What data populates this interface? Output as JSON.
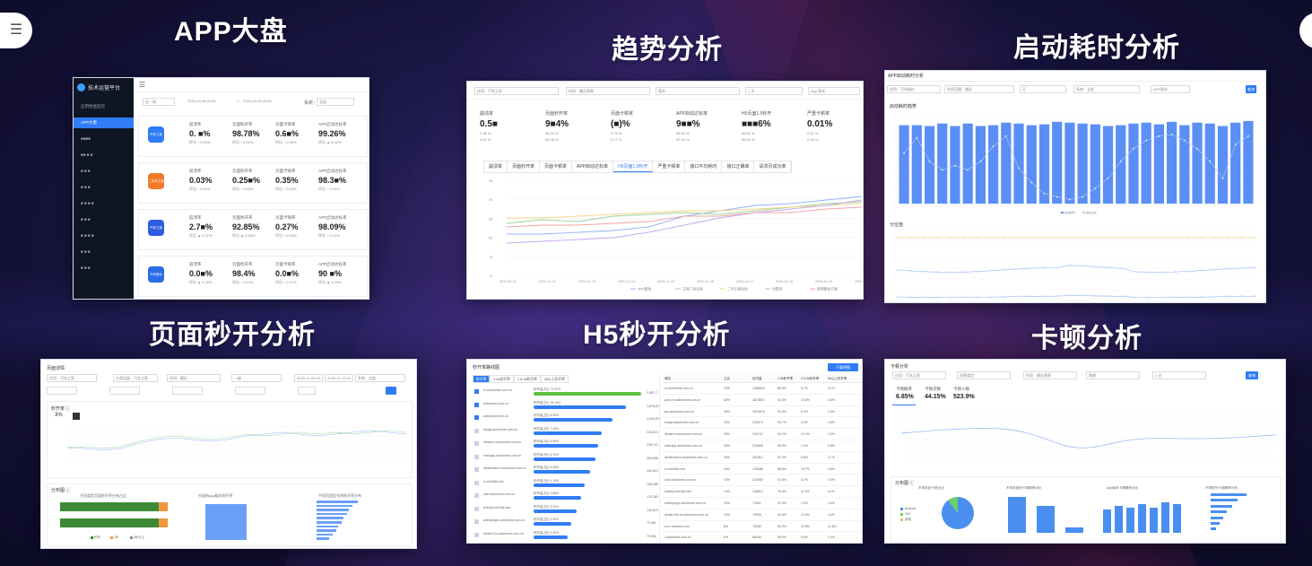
{
  "titles": {
    "app_dashboard": "APP大盘",
    "trend": "趋势分析",
    "startup": "启动耗时分析",
    "page_open": "页面秒开分析",
    "h5_open": "H5秒开分析",
    "jank": "卡顿分析"
  },
  "p1": {
    "brand": "技术运营平台",
    "nav": [
      "应用性能监控",
      "APP大盘",
      "■■■■",
      "■■ ■ ■",
      "■ ■ ■",
      "■ ■ ■",
      "■ ■ ■ ■",
      "■ ■ ■",
      "■ ■ ■ ■",
      "■ ■ ■",
      "■ ■ ■"
    ],
    "filter": {
      "range": "近一周",
      "start": "2020-10-08 00:00",
      "sep": "~",
      "end": "2020-10-15 00:00",
      "system_label": "系统：",
      "system": "全部"
    },
    "kpi_labels": [
      "崩溃率",
      "页面秒开率",
      "页面卡顿率",
      "APP启动达标率"
    ],
    "apps": [
      {
        "icon": "汽车之家",
        "color": "#2f7cf6",
        "values": [
          "0. ■%",
          "98.78%",
          "0.6■%",
          "99.26%"
        ],
        "cmp": [
          "环比 ↑ 0.00%",
          "环比 ↑ 0.03%",
          "环比 ↑ 0.00%",
          "环比 ▲ 0.03%"
        ],
        "dir": [
          "up",
          "up",
          "up",
          "down"
        ]
      },
      {
        "icon": "二手车之家",
        "color": "#f07a2a",
        "values": [
          "0.03%",
          "0.25■%",
          "0.35%",
          "98.3■%"
        ],
        "cmp": [
          "环比 ↑ 0.42%",
          "环比 ↑ 0.03%",
          "环比 ↑ 0.00%",
          "环比 ↑ 0.03%"
        ],
        "dir": [
          "up",
          "up",
          "up",
          "up"
        ]
      },
      {
        "icon": "汽车之家",
        "color": "#2f5de0",
        "values": [
          "2.7■%",
          "92.85%",
          "0.27%",
          "98.09%"
        ],
        "cmp": [
          "环比 ▲ 0.37%",
          "环比 ▲ 0.28%",
          "环比 ↑ 0.03%",
          "环比 ↑ 0.10%"
        ],
        "dir": [
          "down",
          "down",
          "up",
          "up"
        ]
      },
      {
        "icon": "汽车报价",
        "color": "#2a6be8",
        "values": [
          "0.0■%",
          "98.4%",
          "0.0■%",
          "90 ■%"
        ],
        "cmp": [
          "环比 ▲ 0.30%",
          "环比 ↑ 0.07%",
          "环比 ↑ 0.07%",
          "环比 ▲ 0.03%"
        ],
        "dir": [
          "down",
          "up",
          "up",
          "down"
        ]
      }
    ]
  },
  "p2": {
    "filters": [
      "应用：汽车之家",
      "时间：最近两周",
      "版本",
      "1 天",
      "App 版本"
    ],
    "kpis": [
      {
        "t": "崩溃率",
        "v": "0.5■",
        "s1": "2.98 %",
        "s2": "3.87 %"
      },
      {
        "t": "页面秒开率",
        "v": "9■4%",
        "s1": "98.34 %",
        "s2": "96.48 %"
      },
      {
        "t": "页面卡顿率",
        "v": "(■)%",
        "s1": "0.73 %",
        "s2": "0.17 %"
      },
      {
        "t": "APP启动达标率",
        "v": "9■■%",
        "s1": "98.83 %",
        "s2": "97.03 %"
      },
      {
        "t": "H5页面1.5秒开",
        "v": "■■■6%",
        "s1": "96.82 %",
        "s2": "86.22 %"
      },
      {
        "t": "严重卡顿率",
        "v": "0.01%",
        "s1": "0.02 %",
        "s2": "0.03 %"
      }
    ],
    "tabs": [
      "崩溃率",
      "页面秒开率",
      "页面卡顿率",
      "APP启动达标率",
      "H5页面1.5秒开",
      "严重卡顿率",
      "接口平均耗时",
      "接口正确率",
      "请求页成功率"
    ],
    "y_ticks": [
      "95",
      "90",
      "85",
      "80",
      "75",
      "70"
    ],
    "x_ticks": [
      "2020-11-11",
      "2020-11-12",
      "2020-11-13",
      "2020-11-14",
      "2020-11-15",
      "2020-11-16",
      "2020-11-17",
      "2020-11-18",
      "2020-11-19",
      "2020-11-20"
    ],
    "legend": [
      "APP整体",
      "主程厂商名称",
      "二手车相关性",
      "问题库",
      "新增整体方案"
    ]
  },
  "p3": {
    "head": "APP启动耗时分析",
    "filters": [
      "应用：汽车报价",
      "时间范围：最近",
      "天",
      "系统：全部",
      "APP版本"
    ],
    "section1": "启动耗时趋势",
    "section2": "分位值",
    "button": "查询",
    "legend": [
      "启动耗时",
      "启动占比"
    ]
  },
  "p4": {
    "head": "页面详情",
    "filters": [
      "应用：汽车之家",
      "分类层级：汽车之家",
      "时间：最近",
      "一级",
      "2020-11-06 00",
      "2020-11-12 00",
      "系统：全部"
    ],
    "sub1": "秒开率 ⓘ",
    "sub1_value": "3%",
    "sub2": "分布图 ⓘ",
    "chart_titles": [
      "不同类型页面秒开率分布占比",
      "分段的app版本秒开率",
      "不同页面型号的秒开率分布"
    ],
    "legend": [
      "秒开",
      "1秒",
      "2秒以上"
    ]
  },
  "p5": {
    "head": "秒开率路线图",
    "tabs": [
      "秒开率",
      "1.5s秒开率",
      "1.5-3s秒开率",
      "3s以上秒开率"
    ],
    "btn": "下载明细",
    "table_headers": [
      "域名",
      "占比",
      "访问量",
      "1.5s秒开率",
      "1.5-3s秒开率",
      "3s以上秒开率"
    ],
    "rows": [
      {
        "domain": "m.autohome.com.cn",
        "pct": "70%",
        "pv": "3468849",
        "a": "85.9%",
        "b": "5.7%",
        "c": "3.1%"
      },
      {
        "domain": "pano.m.autohome.com.cn",
        "pct": "60%",
        "pv": "1878872",
        "a": "92.4%",
        "b": "10.8%",
        "c": "4.6%"
      },
      {
        "domain": "pic.autohome.com.cn",
        "pct": "45%",
        "pv": "1543675",
        "a": "91.5%",
        "b": "6.0%",
        "c": "2.6%"
      },
      {
        "domain": "baojia.autohome.com.cn",
        "pct": "30%",
        "pv": "226874",
        "a": "95.7%",
        "b": "3.4%",
        "c": "1.8%"
      },
      {
        "domain": "dealer.m.autohome.com.cn",
        "pct": "28%",
        "pv": "218747",
        "a": "90.2%",
        "b": "12.4%",
        "c": "4.3%"
      },
      {
        "domain": "mall.app.autohome.com.cn",
        "pct": "20%",
        "pv": "200658",
        "a": "95.5%",
        "b": "1.9%",
        "c": "0.8%"
      },
      {
        "domain": "dealeradv.m.autohome.com.cn",
        "pct": "18%",
        "pv": "151812",
        "a": "90.3%",
        "b": "6.8%",
        "c": "2.7%"
      },
      {
        "domain": "m.che168.com",
        "pct": "16%",
        "pv": "128388",
        "a": "88.5%",
        "b": "10.7%",
        "c": "3.8%"
      },
      {
        "domain": "club.autohome.com.cn",
        "pct": "15%",
        "pv": "120350",
        "a": "92.8%",
        "b": "5.7%",
        "c": "3.0%"
      },
      {
        "domain": "activity.che168.com",
        "pct": "14%",
        "pv": "105619",
        "a": "76.4%",
        "b": "11.4%",
        "c": "6.1%"
      },
      {
        "domain": "activity.app.autohome.com.cn",
        "pct": "12%",
        "pv": "73461",
        "a": "91.3%",
        "b": "1.9%",
        "c": "1.6%"
      },
      {
        "domain": "dealer.b2c.m.autohome.com.cn",
        "pct": "10%",
        "pv": "75906",
        "a": "92.0%",
        "b": "12.8%",
        "c": "4.2%"
      },
      {
        "domain": "w.cx.mecehe.com",
        "pct": "8%",
        "pv": "76395",
        "a": "96.3%",
        "b": "10.8%",
        "c": "11.6%"
      },
      {
        "domain": "i.autohome.com.cn",
        "pct": "6%",
        "pv": "68304",
        "a": "95.0%",
        "b": "8.6%",
        "c": "2.0%"
      }
    ],
    "list_items": [
      {
        "name": "m.autohome.com.cn",
        "bar": "秒开量占比 71.87%",
        "count": "3,467,7",
        "pct": 0.95,
        "color": "#5cc040"
      },
      {
        "name": "autohome.com.cn",
        "bar": "秒开量占比 15.74%",
        "count": "1,878,872",
        "pct": 0.82,
        "color": "#2f7cf6"
      },
      {
        "name": "autohome.com.cn",
        "bar": "秒开量占比 8.96%",
        "count": "1,543,675",
        "pct": 0.7,
        "color": "#2f7cf6"
      },
      {
        "name": "baojia.autohome.com.cn",
        "bar": "秒开量占比 7.08%",
        "count": "226,874",
        "pct": 0.6,
        "color": "#2f7cf6"
      },
      {
        "name": "dealer.m.autohome.com.cn",
        "bar": "秒开量占比 6.98%",
        "count": "218,747",
        "pct": 0.57,
        "color": "#2f7cf6"
      },
      {
        "name": "mall.app.autohome.com.cn",
        "bar": "秒开量占比 6.78%",
        "count": "200,658",
        "pct": 0.55,
        "color": "#2f7cf6"
      },
      {
        "name": "dealeradv.m.autohome.com.cn",
        "bar": "秒开量占比 5.38%",
        "count": "151,812",
        "pct": 0.5,
        "color": "#2f7cf6"
      },
      {
        "name": "m.che168.com",
        "bar": "秒开量占比 4.18%",
        "count": "128,388",
        "pct": 0.45,
        "color": "#2f7cf6"
      },
      {
        "name": "club.autohome.com.cn",
        "bar": "秒开量占比 3.86%",
        "count": "120,350",
        "pct": 0.42,
        "color": "#2f7cf6"
      },
      {
        "name": "activity.che168.com",
        "bar": "秒开量占比 3.33%",
        "count": "105,619",
        "pct": 0.38,
        "color": "#2f7cf6"
      },
      {
        "name": "activity.app.autohome.com.cn",
        "bar": "秒开量占比 2.64%",
        "count": "73,461",
        "pct": 0.33,
        "color": "#2f7cf6"
      },
      {
        "name": "dealer.b2c.autohome.com.cn",
        "bar": "秒开量占比 2.39%",
        "count": "75,906",
        "pct": 0.3,
        "color": "#2f7cf6"
      }
    ]
  },
  "p6": {
    "head": "卡顿分析",
    "filters": [
      "应用：汽车之家",
      "选择类型",
      "时间：最近两周",
      "周期",
      "1 天"
    ],
    "btn": "查询",
    "kpis": [
      {
        "t": "卡顿概率",
        "v": "6.85%"
      },
      {
        "t": "卡顿次数",
        "v": "44.15%"
      },
      {
        "t": "卡顿人数",
        "v": "523.9%"
      }
    ],
    "sub2": "分布图 ⓘ",
    "chart_titles": [
      "不同系统卡顿占比",
      "不同系统的卡顿概率对比",
      "App版本卡顿概率对比",
      "不同型号卡顿概率分布"
    ],
    "pie_legend": [
      "Android",
      "iOS",
      "其他"
    ]
  }
}
